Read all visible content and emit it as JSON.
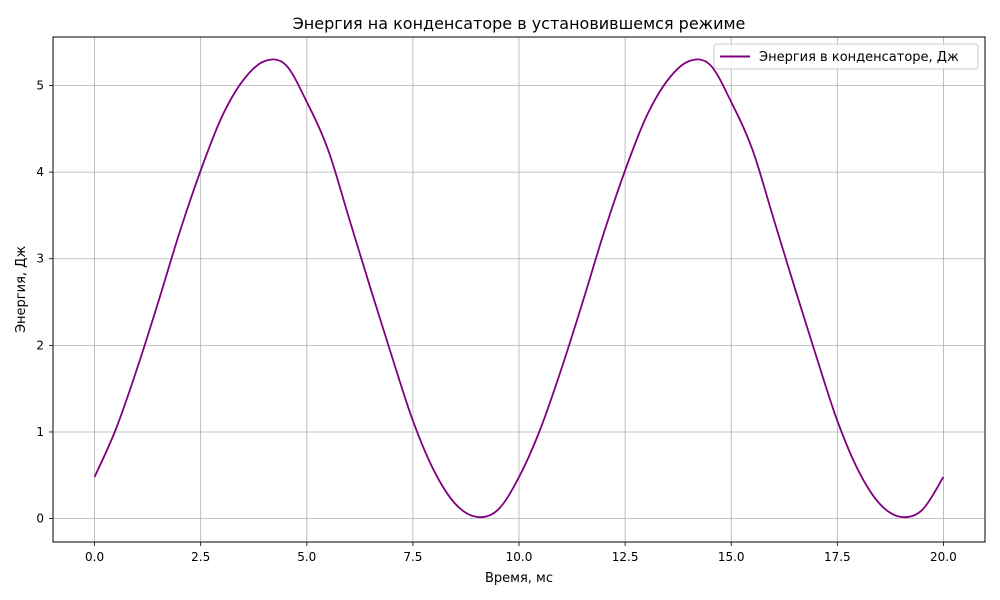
{
  "chart_data": {
    "type": "line",
    "title": "Энергия на конденсаторе в установившемся режиме",
    "xlabel": "Время, мс",
    "ylabel": "Энергия, Дж",
    "xlim": [
      -0.98,
      20.98
    ],
    "ylim": [
      -0.27,
      5.56
    ],
    "xticks": [
      0,
      2.5,
      5,
      7.5,
      10,
      12.5,
      15,
      17.5,
      20
    ],
    "xtick_labels": [
      "0.0",
      "2.5",
      "5.0",
      "7.5",
      "10.0",
      "12.5",
      "15.0",
      "17.5",
      "20.0"
    ],
    "yticks": [
      0,
      1,
      2,
      3,
      4,
      5
    ],
    "ytick_labels": [
      "0",
      "1",
      "2",
      "3",
      "4",
      "5"
    ],
    "grid": true,
    "legend_position": "top-right",
    "series": [
      {
        "name": "Энергия в конденсаторе, Дж",
        "color": "#800080",
        "x": [
          0,
          0.5,
          1,
          1.5,
          2,
          2.5,
          3,
          3.5,
          4,
          4.5,
          5,
          5.5,
          6,
          6.5,
          7,
          7.5,
          8,
          8.5,
          9,
          9.5,
          10,
          10.5,
          11,
          11.5,
          12,
          12.5,
          13,
          13.5,
          14,
          14.5,
          15,
          15.5,
          16,
          16.5,
          17,
          17.5,
          18,
          18.5,
          19,
          19.5,
          20
        ],
        "y": [
          0.48,
          1.03,
          1.73,
          2.5,
          3.3,
          4.02,
          4.64,
          5.06,
          5.28,
          5.24,
          4.81,
          4.26,
          3.46,
          2.66,
          1.88,
          1.13,
          0.55,
          0.17,
          0.02,
          0.1,
          0.48,
          1.03,
          1.73,
          2.5,
          3.3,
          4.02,
          4.64,
          5.06,
          5.28,
          5.24,
          4.81,
          4.26,
          3.46,
          2.66,
          1.88,
          1.13,
          0.55,
          0.17,
          0.02,
          0.1,
          0.48
        ]
      }
    ]
  }
}
